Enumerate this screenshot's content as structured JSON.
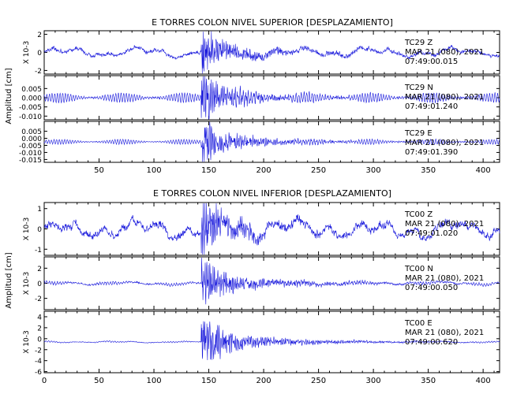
{
  "colors": {
    "trace": "#1a1adc",
    "axes": "#000000",
    "background": "#ffffff"
  },
  "chart_data": [
    {
      "type": "line",
      "title": "E TORRES COLON NIVEL SUPERIOR [DESPLAZAMIENTO]",
      "ylabel": "Amplitud [cm]",
      "xlim": [
        0,
        415
      ],
      "x_ticks": [
        "50",
        "100",
        "150",
        "200",
        "250",
        "300",
        "350",
        "400"
      ],
      "x_tick_values": [
        50,
        100,
        150,
        200,
        250,
        300,
        350,
        400
      ],
      "panels": [
        {
          "station": "TC29 Z",
          "date": "MAR 21 (080), 2021",
          "time": "07:49:00.015",
          "scale_label": "X 10-3",
          "ylim": [
            -2.4,
            2.4
          ],
          "y_ticks": [
            "2",
            "0",
            "-2"
          ],
          "y_tick_values": [
            2,
            0,
            -2
          ],
          "signal": {
            "event_time": 143,
            "peak_amplitude": 2.3,
            "background_amplitude": 0.8,
            "kind": "long-period"
          }
        },
        {
          "station": "TC29 N",
          "date": "MAR 21 (080), 2021",
          "time": "07:49:01.240",
          "scale_label": "",
          "ylim": [
            -0.012,
            0.012
          ],
          "y_ticks": [
            "0.005",
            "0.000",
            "-0.005",
            "-0.010"
          ],
          "y_tick_values": [
            0.005,
            0.0,
            -0.005,
            -0.01
          ],
          "signal": {
            "event_time": 143,
            "peak_amplitude": 0.011,
            "background_amplitude": 0.003,
            "kind": "oscillatory"
          }
        },
        {
          "station": "TC29 E",
          "date": "MAR 21 (080), 2021",
          "time": "07:49:01.390",
          "scale_label": "",
          "ylim": [
            -0.017,
            0.012
          ],
          "y_ticks": [
            "0.005",
            "0.000",
            "-0.005",
            "-0.010",
            "-0.015"
          ],
          "y_tick_values": [
            0.005,
            0.0,
            -0.005,
            -0.01,
            -0.015
          ],
          "signal": {
            "event_time": 143,
            "peak_amplitude": 0.014,
            "background_amplitude": 0.002,
            "kind": "oscillatory"
          }
        }
      ]
    },
    {
      "type": "line",
      "title": "E TORRES COLON NIVEL INFERIOR [DESPLAZAMIENTO]",
      "ylabel": "Amplitud [cm]",
      "xlim": [
        0,
        415
      ],
      "x_ticks": [
        "0",
        "50",
        "100",
        "150",
        "200",
        "250",
        "300",
        "350",
        "400"
      ],
      "x_tick_values": [
        0,
        50,
        100,
        150,
        200,
        250,
        300,
        350,
        400
      ],
      "panels": [
        {
          "station": "TC00 Z",
          "date": "MAR 21 (080), 2021",
          "time": "07:49:01.020",
          "scale_label": "X 10-3",
          "ylim": [
            -1.3,
            1.3
          ],
          "y_ticks": [
            "1",
            "0",
            "-1"
          ],
          "y_tick_values": [
            1,
            0,
            -1
          ],
          "signal": {
            "event_time": 143,
            "peak_amplitude": 1.2,
            "background_amplitude": 0.7,
            "kind": "long-period"
          }
        },
        {
          "station": "TC00 N",
          "date": "MAR 21 (080), 2021",
          "time": "07:49:00.050",
          "scale_label": "X 10-3",
          "ylim": [
            -3.5,
            3.5
          ],
          "y_ticks": [
            "2",
            "0",
            "-2"
          ],
          "y_tick_values": [
            2,
            0,
            -2
          ],
          "signal": {
            "event_time": 143,
            "peak_amplitude": 3.0,
            "background_amplitude": 0.5,
            "kind": "mixed"
          }
        },
        {
          "station": "TC00 E",
          "date": "MAR 21 (080), 2021",
          "time": "07:49:00.620",
          "scale_label": "X 10-3",
          "ylim": [
            -6.2,
            5.0
          ],
          "y_ticks": [
            "4",
            "2",
            "0",
            "-2",
            "-4",
            "-6"
          ],
          "y_tick_values": [
            4,
            2,
            0,
            -2,
            -4,
            -6
          ],
          "signal": {
            "event_time": 143,
            "peak_amplitude": 4.5,
            "background_amplitude": 0.3,
            "kind": "mixed"
          }
        }
      ]
    }
  ]
}
